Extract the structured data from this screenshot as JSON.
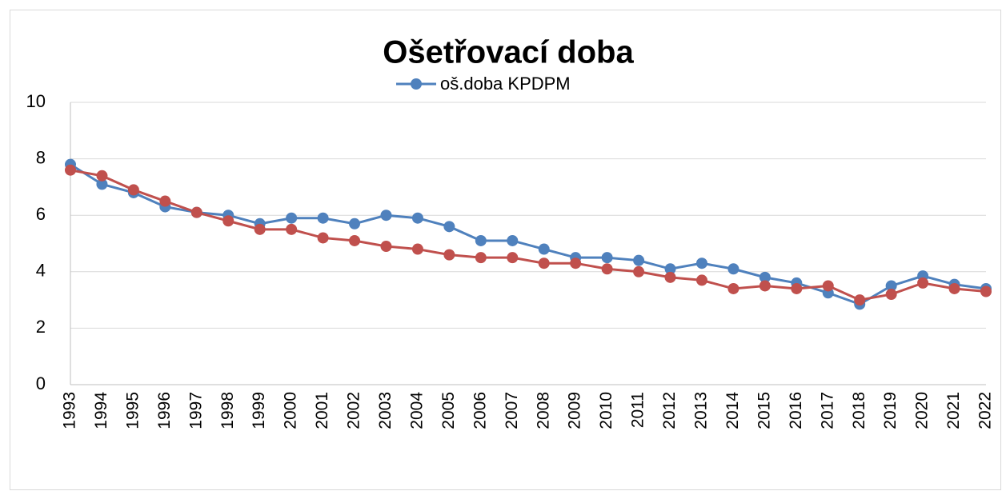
{
  "chart_data": {
    "type": "line",
    "title": "Ošetřovací doba",
    "categories": [
      "1993",
      "1994",
      "1995",
      "1996",
      "1997",
      "1998",
      "1999",
      "2000",
      "2001",
      "2002",
      "2003",
      "2004",
      "2005",
      "2006",
      "2007",
      "2008",
      "2009",
      "2010",
      "2011",
      "2012",
      "2013",
      "2014",
      "2015",
      "2016",
      "2017",
      "2018",
      "2019",
      "2020",
      "2021",
      "2022"
    ],
    "series": [
      {
        "name": "oš.doba KPDPM",
        "color": "#4f81bd",
        "values": [
          7.8,
          7.1,
          6.8,
          6.3,
          6.1,
          6.0,
          5.7,
          5.9,
          5.9,
          5.7,
          6.0,
          5.9,
          5.6,
          5.1,
          5.1,
          4.8,
          4.5,
          4.5,
          4.4,
          4.1,
          4.3,
          4.1,
          3.8,
          3.6,
          3.25,
          2.85,
          3.5,
          3.85,
          3.55,
          3.4
        ]
      },
      {
        "color": "#c0504d",
        "values": [
          7.6,
          7.4,
          6.9,
          6.5,
          6.1,
          5.8,
          5.5,
          5.5,
          5.2,
          5.1,
          4.9,
          4.8,
          4.6,
          4.5,
          4.5,
          4.3,
          4.3,
          4.1,
          4.0,
          3.8,
          3.7,
          3.4,
          3.5,
          3.4,
          3.5,
          3.0,
          3.2,
          3.6,
          3.4,
          3.3
        ]
      }
    ],
    "ylim": [
      0,
      10
    ],
    "yticks": [
      0,
      2,
      4,
      6,
      8,
      10
    ],
    "grid": true,
    "legend": "top"
  }
}
